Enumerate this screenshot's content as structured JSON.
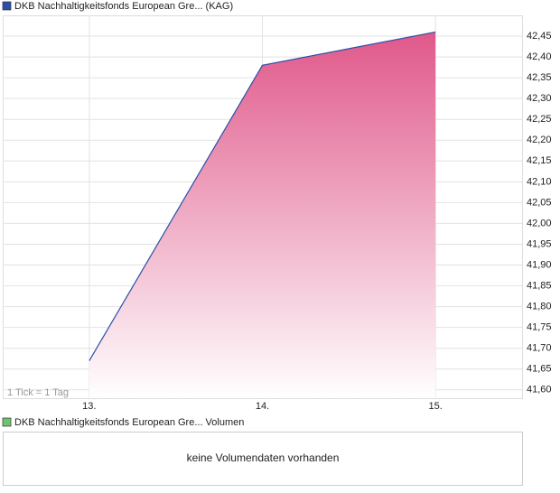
{
  "chart_data": {
    "type": "area",
    "series": [
      {
        "name": "DKB Nachhaltigkeitsfonds European Gre... (KAG)",
        "color": "#2b4fa8",
        "fill": "#e0588a",
        "x": [
          13,
          14,
          15
        ],
        "values": [
          41.67,
          42.38,
          42.46
        ]
      }
    ],
    "xlim": [
      12.5,
      15.5
    ],
    "xticks": [
      {
        "value": 13,
        "label": "13."
      },
      {
        "value": 14,
        "label": "14."
      },
      {
        "value": 15,
        "label": "15."
      }
    ],
    "ylim": [
      41.58,
      42.5
    ],
    "yticks": [
      {
        "value": 41.6,
        "label": "41,60"
      },
      {
        "value": 41.65,
        "label": "41,65"
      },
      {
        "value": 41.7,
        "label": "41,70"
      },
      {
        "value": 41.75,
        "label": "41,75"
      },
      {
        "value": 41.8,
        "label": "41,80"
      },
      {
        "value": 41.85,
        "label": "41,85"
      },
      {
        "value": 41.9,
        "label": "41,90"
      },
      {
        "value": 41.95,
        "label": "41,95"
      },
      {
        "value": 42.0,
        "label": "42,00"
      },
      {
        "value": 42.05,
        "label": "42,05"
      },
      {
        "value": 42.1,
        "label": "42,10"
      },
      {
        "value": 42.15,
        "label": "42,15"
      },
      {
        "value": 42.2,
        "label": "42,20"
      },
      {
        "value": 42.25,
        "label": "42,25"
      },
      {
        "value": 42.3,
        "label": "42,30"
      },
      {
        "value": 42.35,
        "label": "42,35"
      },
      {
        "value": 42.4,
        "label": "42,40"
      },
      {
        "value": 42.45,
        "label": "42,45"
      }
    ],
    "grid": true,
    "annotation": "1 Tick = 1 Tag"
  },
  "volume_panel": {
    "legend": "DKB Nachhaltigkeitsfonds European Gre... Volumen",
    "legend_color": "#6cc46c",
    "message": "keine Volumendaten vorhanden"
  }
}
